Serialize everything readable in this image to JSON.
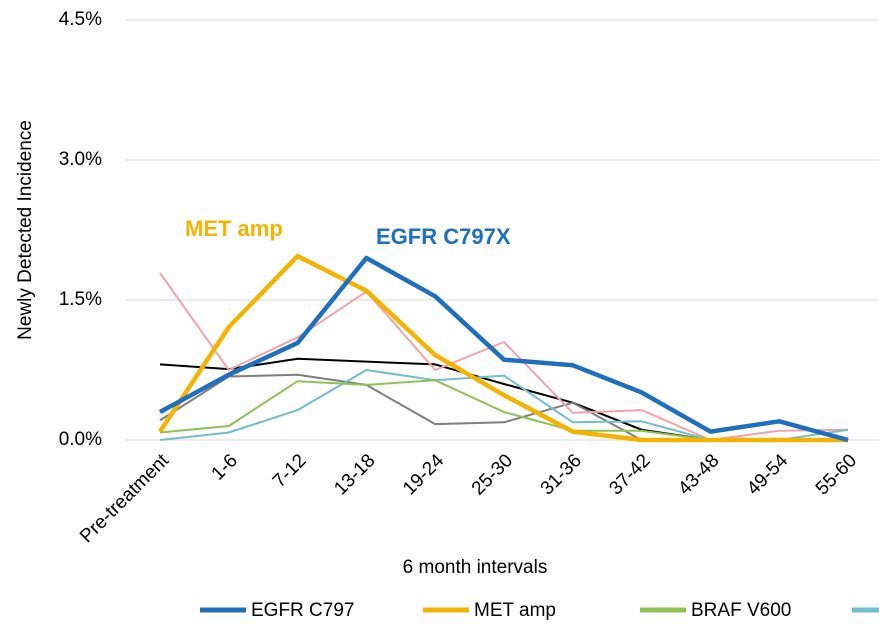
{
  "chart_data": {
    "type": "line",
    "y_label": "Newly Detected Incidence",
    "x_label": "6 month intervals",
    "annotations": [
      {
        "text": "MET amp",
        "color": "#f5b301"
      },
      {
        "text": "EGFR C797X",
        "color": "#1f6fbf"
      }
    ],
    "categories": [
      "Pre-treatment",
      "1-6",
      "7-12",
      "13-18",
      "19-24",
      "25-30",
      "31-36",
      "37-42",
      "43-48",
      "49-54",
      "55-60"
    ],
    "series": [
      {
        "name": "EGFR C797",
        "color": "#1f6fbf",
        "values": [
          0.3,
          0.7,
          1.04,
          1.95,
          1.54,
          0.86,
          0.8,
          0.51,
          0.09,
          0.2,
          0.0
        ]
      },
      {
        "name": "MET amp",
        "color": "#f5b301",
        "values": [
          0.09,
          1.21,
          1.97,
          1.6,
          0.91,
          0.48,
          0.09,
          0.0,
          0.0,
          0.0,
          0.0
        ]
      },
      {
        "name": "BRAF V600",
        "color": "#8dc252",
        "values": [
          0.08,
          0.15,
          0.63,
          0.59,
          0.64,
          0.3,
          0.1,
          0.1,
          0.0,
          0.0,
          0.0
        ]
      },
      {
        "color": "#6fbfcf",
        "values": [
          0.0,
          0.08,
          0.32,
          0.75,
          0.64,
          0.69,
          0.19,
          0.2,
          0.0,
          0.0,
          0.11
        ]
      },
      {
        "color": "#f4a3a8",
        "values": [
          1.79,
          0.75,
          1.1,
          1.59,
          0.75,
          1.05,
          0.29,
          0.32,
          0.0,
          0.1,
          0.11
        ]
      },
      {
        "color": "#7f7f7f",
        "values": [
          0.21,
          0.68,
          0.7,
          0.59,
          0.17,
          0.19,
          0.4,
          0.0,
          0.0,
          0.0,
          0.0
        ]
      },
      {
        "color": "#000000",
        "values": [
          0.81,
          0.76,
          0.87,
          0.84,
          0.81,
          0.6,
          0.4,
          0.11,
          0.0,
          0.0,
          0.0
        ]
      }
    ],
    "ylim": [
      0,
      4.5
    ],
    "yticks": [
      {
        "value": 0,
        "label": "0.0%"
      },
      {
        "value": 1.5,
        "label": "1.5%"
      },
      {
        "value": 3,
        "label": "3.0%"
      },
      {
        "value": 4.5,
        "label": "4.5%"
      }
    ],
    "grid": true
  }
}
